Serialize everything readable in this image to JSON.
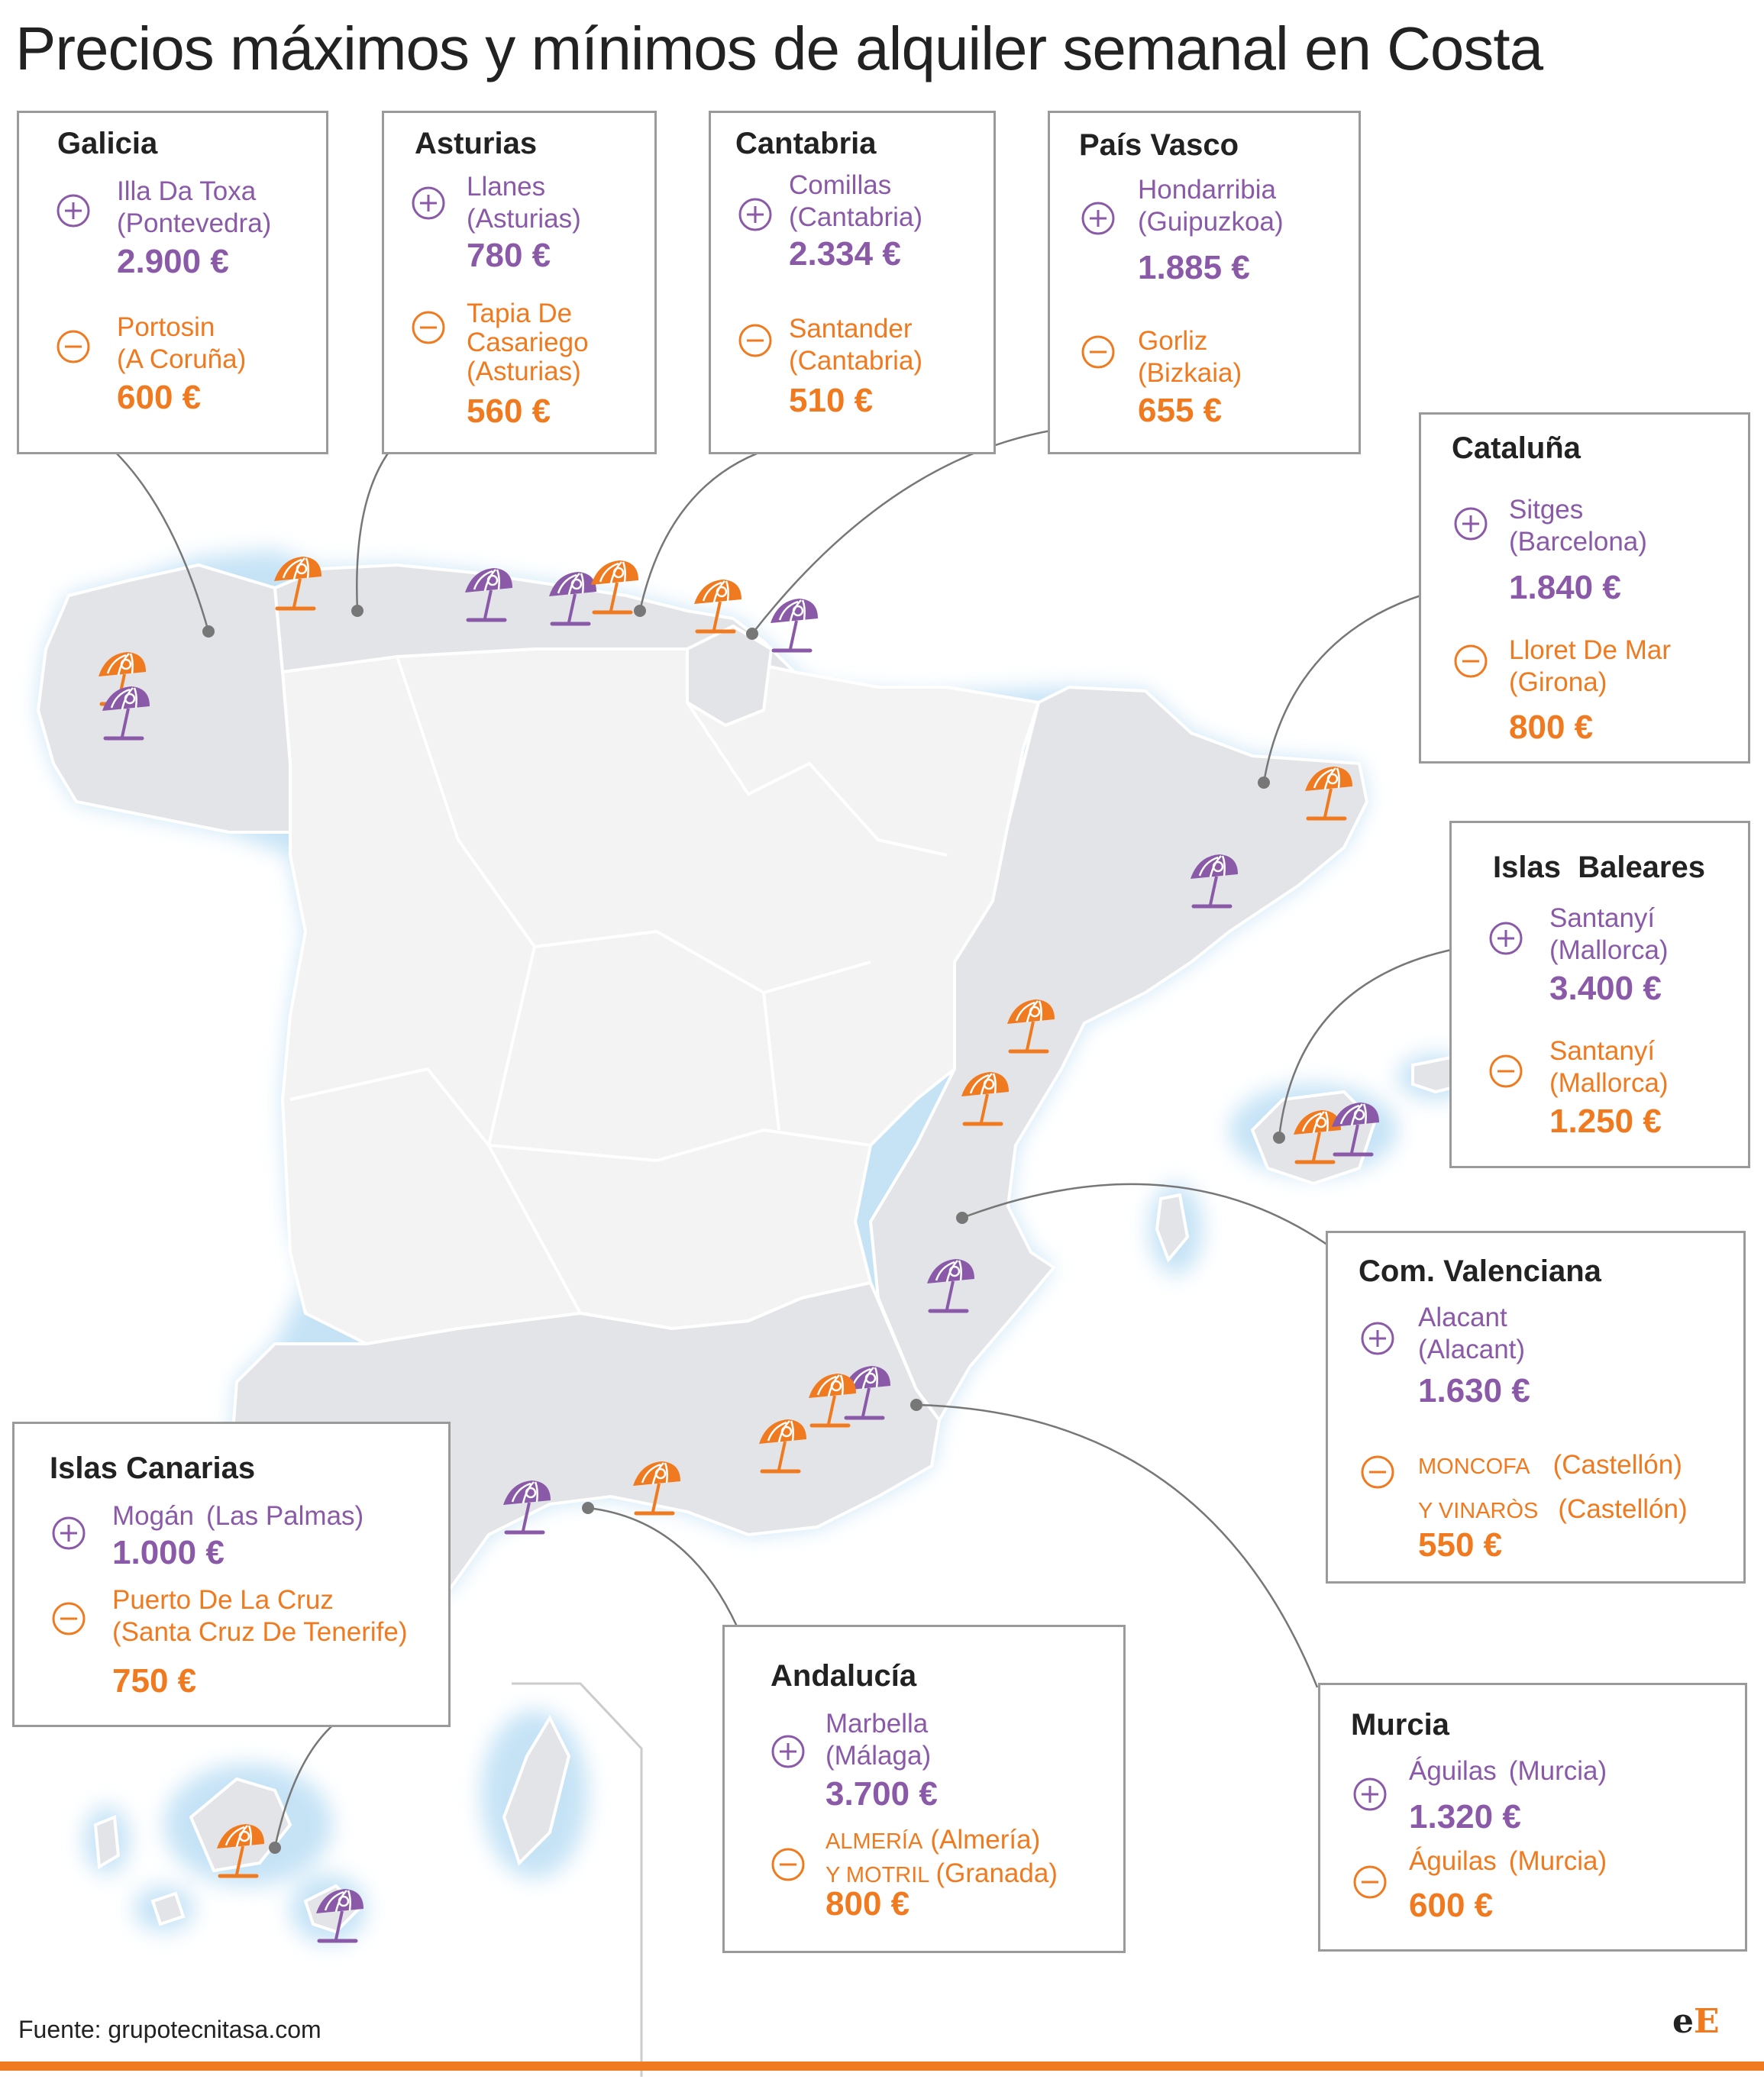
{
  "title": "Precios máximos y mínimos de alquiler semanal en Costa",
  "source": "Fuente: grupotecnitasa.com",
  "logo": {
    "e": "e",
    "E": "E"
  },
  "colors": {
    "max": "#8a5aa8",
    "min": "#f07a1f",
    "land": "#e3e4e7",
    "land_light": "#f3f3f4",
    "glow": "#cfe6f7"
  },
  "icons": {
    "max": "plus-circle-icon",
    "min": "minus-circle-icon",
    "marker": "beach-umbrella-icon"
  },
  "regions": {
    "galicia": {
      "name": "Galicia",
      "max": {
        "place1": "Illa Da Toxa",
        "place2": "(Pontevedra)",
        "price": "2.900 €"
      },
      "min": {
        "place1": "Portosin",
        "place2": "(A Coruña)",
        "price": "600 €"
      }
    },
    "asturias": {
      "name": "Asturias",
      "max": {
        "place1": "Llanes",
        "place2": "(Asturias)",
        "price": "780 €"
      },
      "min": {
        "place1": "Tapia De",
        "place2": "Casariego",
        "place3": "(Asturias)",
        "price": "560 €"
      }
    },
    "cantabria": {
      "name": "Cantabria",
      "max": {
        "place1": "Comillas",
        "place2": "(Cantabria)",
        "price": "2.334 €"
      },
      "min": {
        "place1": "Santander",
        "place2": "(Cantabria)",
        "price": "510 €"
      }
    },
    "pais_vasco": {
      "name": "País Vasco",
      "max": {
        "place1": "Hondarribia",
        "place2": "(Guipuzkoa)",
        "price": "1.885 €"
      },
      "min": {
        "place1": "Gorliz",
        "place2": "(Bizkaia)",
        "price": "655 €"
      }
    },
    "cataluna": {
      "name": "Cataluña",
      "max": {
        "place1": "Sitges",
        "place2": "(Barcelona)",
        "price": "1.840 €"
      },
      "min": {
        "place1": "Lloret De Mar",
        "place2": "(Girona)",
        "price": "800 €"
      }
    },
    "baleares": {
      "name": "Islas  Baleares",
      "max": {
        "place1": "Santanyí",
        "place2": "(Mallorca)",
        "price": "3.400 €"
      },
      "min": {
        "place1": "Santanyí",
        "place2": "(Mallorca)",
        "price": "1.250 €"
      }
    },
    "valenciana": {
      "name": "Com. Valenciana",
      "max": {
        "place1": "Alacant",
        "place2": "(Alacant)",
        "price": "1.630 €"
      },
      "min": {
        "place1": "MONCOFA",
        "place1b": "(Castellón)",
        "place2": "Y VINARÒS",
        "place2b": "(Castellón)",
        "price": "550 €"
      }
    },
    "canarias": {
      "name": "Islas Canarias",
      "max": {
        "place1": "Mogán",
        "place1b": "(Las Palmas)",
        "price": "1.000 €"
      },
      "min": {
        "place1": "Puerto De La Cruz",
        "place2": "(Santa Cruz De Tenerife)",
        "price": "750 €"
      }
    },
    "andalucia": {
      "name": "Andalucía",
      "max": {
        "place1": "Marbella",
        "place2": "(Málaga)",
        "price": "3.700 €"
      },
      "min": {
        "place1": "ALMERÍA",
        "place1b": "(Almería)",
        "place2": "Y MOTRIL",
        "place2b": "(Granada)",
        "price": "800 €"
      }
    },
    "murcia": {
      "name": "Murcia",
      "max": {
        "place1": "Águilas",
        "place1b": "(Murcia)",
        "price": "1.320 €"
      },
      "min": {
        "place1": "Águilas",
        "place1b": "(Murcia)",
        "price": "600 €"
      }
    }
  }
}
